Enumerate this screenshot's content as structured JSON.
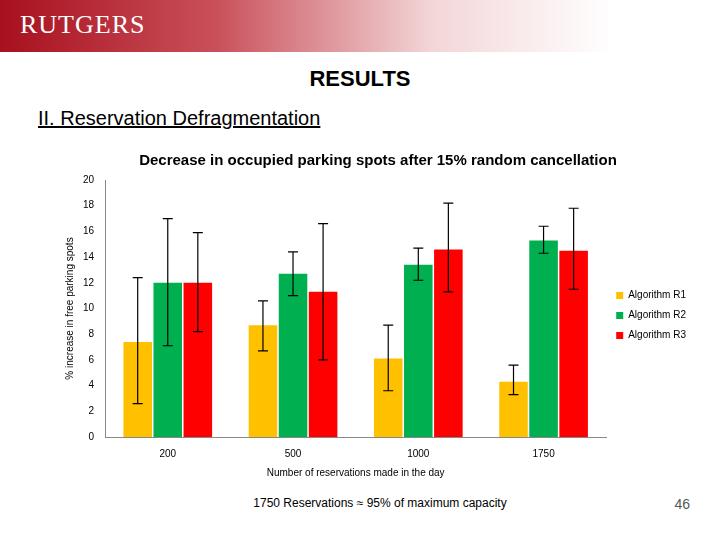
{
  "slide": {
    "logo": "RUTGERS",
    "heading": "RESULTS",
    "subheading": "II. Reservation Defragmentation",
    "footnote": "1750 Reservations ≈ 95% of maximum capacity",
    "page_number": "46"
  },
  "chart_data": {
    "type": "bar",
    "title": "Decrease in occupied parking spots after 15% random cancellation",
    "x_label": "Number of reservations made in the day",
    "y_label": "% increase in free parking spots",
    "categories": [
      "200",
      "500",
      "1000",
      "1750"
    ],
    "series": [
      {
        "name": "Algorithm R1",
        "color": "#ffc000",
        "values": [
          7.4,
          8.7,
          6.1,
          4.3
        ],
        "error_low": [
          2.6,
          6.7,
          3.6,
          3.3
        ],
        "error_high": [
          12.4,
          10.6,
          8.7,
          5.6
        ]
      },
      {
        "name": "Algorithm R2",
        "color": "#00b050",
        "values": [
          12.0,
          12.7,
          13.4,
          15.3
        ],
        "error_low": [
          7.1,
          11.0,
          12.2,
          14.3
        ],
        "error_high": [
          17.0,
          14.4,
          14.7,
          16.4
        ]
      },
      {
        "name": "Algorithm R3",
        "color": "#ff0000",
        "values": [
          12.0,
          11.3,
          14.6,
          14.5
        ],
        "error_low": [
          8.2,
          6.0,
          11.3,
          11.5
        ],
        "error_high": [
          15.9,
          16.6,
          18.2,
          17.8
        ]
      }
    ],
    "ylim": [
      0,
      20
    ],
    "yticks": [
      0,
      2,
      4,
      6,
      8,
      10,
      12,
      14,
      16,
      18,
      20
    ],
    "grid": false,
    "legend": "right"
  }
}
